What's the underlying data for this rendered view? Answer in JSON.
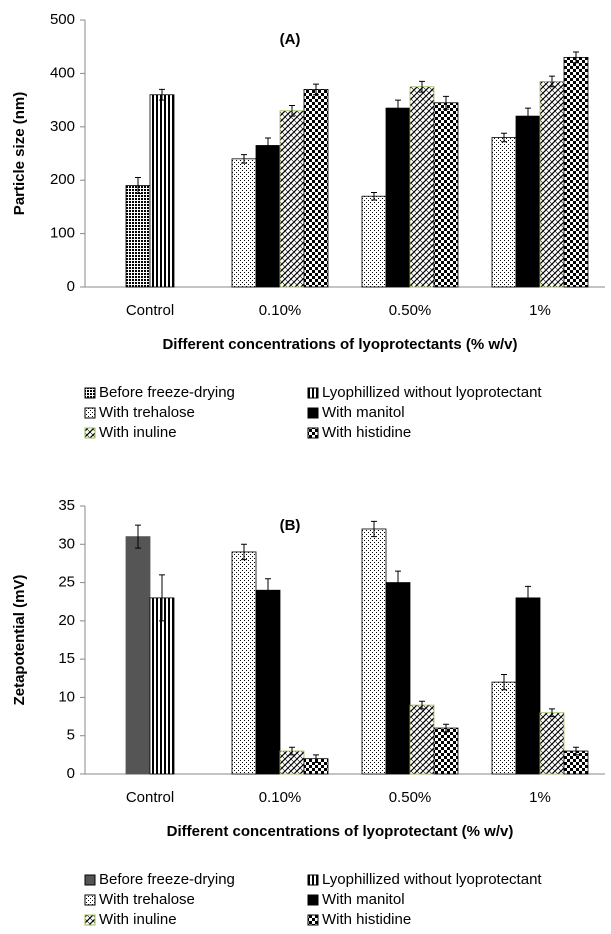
{
  "chart_data": [
    {
      "type": "bar",
      "title": "(A)",
      "ylabel": "Particle size (nm)",
      "xlabel": "Different concentrations of lyoprotectants (% w/v)",
      "categories": [
        "Control",
        "0.10%",
        "0.50%",
        "1%"
      ],
      "ylim": [
        0,
        500
      ],
      "yticks": [
        0,
        100,
        200,
        300,
        400,
        500
      ],
      "legend": "bottom",
      "series": [
        {
          "name": "Before freeze-drying",
          "color": "#000000",
          "pattern": "dots-dense",
          "values": [
            190,
            null,
            null,
            null
          ],
          "errors": [
            15,
            null,
            null,
            null
          ]
        },
        {
          "name": "Lyophillized without lyoprotectant",
          "color": "#000000",
          "pattern": "vlines",
          "values": [
            360,
            null,
            null,
            null
          ],
          "errors": [
            10,
            null,
            null,
            null
          ]
        },
        {
          "name": "With trehalose",
          "color": "#000000",
          "pattern": "dots-sparse",
          "values": [
            null,
            240,
            170,
            280
          ],
          "errors": [
            null,
            8,
            7,
            8
          ]
        },
        {
          "name": "With manitol",
          "color": "#000000",
          "pattern": "solid",
          "values": [
            null,
            265,
            335,
            320
          ],
          "errors": [
            null,
            14,
            15,
            15
          ]
        },
        {
          "name": "With inuline",
          "color": "#9bbb59",
          "pattern": "diag",
          "values": [
            null,
            330,
            375,
            385
          ],
          "errors": [
            null,
            10,
            10,
            10
          ]
        },
        {
          "name": "With histidine",
          "color": "#000000",
          "pattern": "checker",
          "values": [
            null,
            370,
            345,
            430
          ],
          "errors": [
            null,
            10,
            12,
            10
          ]
        }
      ]
    },
    {
      "type": "bar",
      "title": "(B)",
      "ylabel": "Zetapotential (mV)",
      "xlabel": "Different concentrations of lyoprotectant (% w/v)",
      "categories": [
        "Control",
        "0.10%",
        "0.50%",
        "1%"
      ],
      "ylim": [
        0,
        35
      ],
      "yticks": [
        0,
        5,
        10,
        15,
        20,
        25,
        30,
        35
      ],
      "legend": "bottom",
      "series": [
        {
          "name": "Before freeze-drying",
          "color": "#555555",
          "pattern": "solid",
          "values": [
            31,
            null,
            null,
            null
          ],
          "errors": [
            1.5,
            null,
            null,
            null
          ]
        },
        {
          "name": "Lyophillized without lyoprotectant",
          "color": "#000000",
          "pattern": "vlines",
          "values": [
            23,
            null,
            null,
            null
          ],
          "errors": [
            3,
            null,
            null,
            null
          ]
        },
        {
          "name": "With trehalose",
          "color": "#000000",
          "pattern": "dots-sparse",
          "values": [
            null,
            29,
            32,
            12
          ],
          "errors": [
            null,
            1,
            1,
            1
          ]
        },
        {
          "name": "With manitol",
          "color": "#000000",
          "pattern": "solid",
          "values": [
            null,
            24,
            25,
            23
          ],
          "errors": [
            null,
            1.5,
            1.5,
            1.5
          ]
        },
        {
          "name": "With inuline",
          "color": "#9bbb59",
          "pattern": "diag",
          "values": [
            null,
            3,
            9,
            8
          ],
          "errors": [
            null,
            0.5,
            0.5,
            0.5
          ]
        },
        {
          "name": "With histidine",
          "color": "#000000",
          "pattern": "checker",
          "values": [
            null,
            2,
            6,
            3
          ],
          "errors": [
            null,
            0.5,
            0.5,
            0.5
          ]
        }
      ]
    }
  ]
}
